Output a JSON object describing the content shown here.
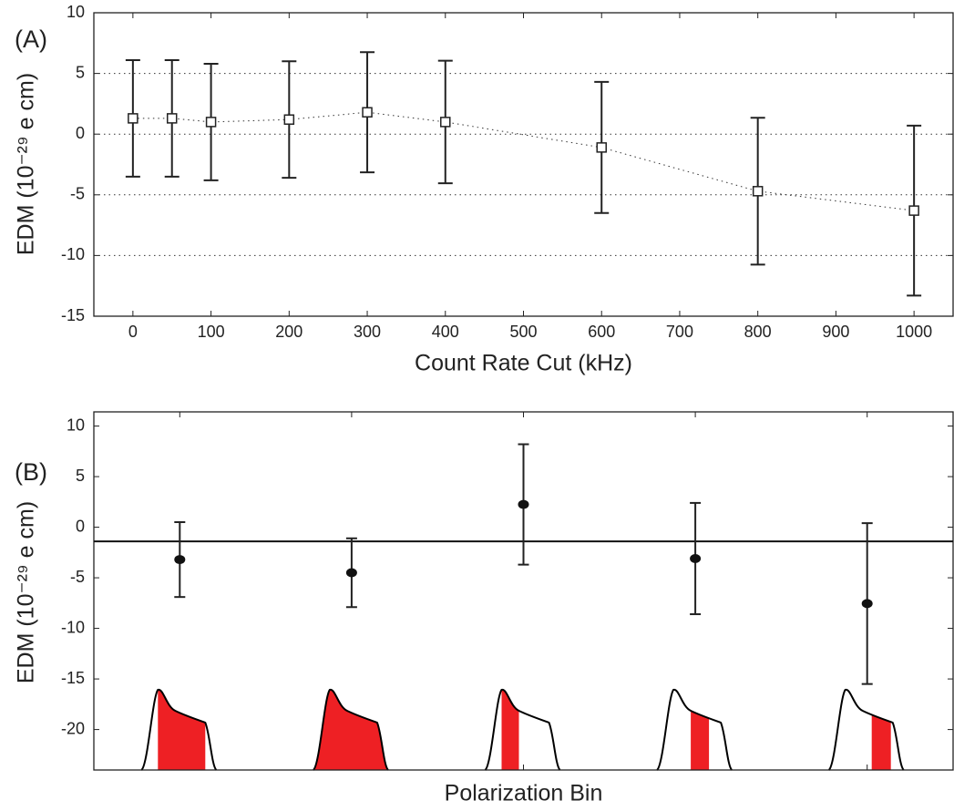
{
  "chart_data": [
    {
      "type": "errorbar",
      "panel_label": "(A)",
      "x_label": "Count Rate Cut (kHz)",
      "y_label": "EDM (10⁻²⁹ e cm)",
      "x": [
        0,
        50,
        100,
        200,
        300,
        400,
        600,
        800,
        1000
      ],
      "values": [
        1.3,
        1.3,
        1.0,
        1.2,
        1.8,
        1.0,
        -1.1,
        -4.7,
        -6.3
      ],
      "errors": [
        4.8,
        4.8,
        4.8,
        4.8,
        4.95,
        5.05,
        5.4,
        6.05,
        7.0
      ],
      "xlim": [
        -50,
        1050
      ],
      "xticks": [
        0,
        100,
        200,
        300,
        400,
        500,
        600,
        700,
        800,
        900,
        1000
      ],
      "ylim": [
        -15,
        10
      ],
      "yticks": [
        -15,
        -10,
        -5,
        0,
        5,
        10
      ],
      "grid": true,
      "marker": "square",
      "line": true,
      "color": "#222222"
    },
    {
      "type": "errorbar",
      "panel_label": "(B)",
      "x_label": "Polarization Bin",
      "y_label": "EDM (10⁻²⁹ e cm)",
      "categories": [
        null,
        null,
        null,
        null,
        null
      ],
      "values": [
        -3.2,
        -4.5,
        2.25,
        -3.1,
        -7.55
      ],
      "errors": [
        3.7,
        3.4,
        5.95,
        5.5,
        7.95
      ],
      "ylim": [
        -24,
        11.4
      ],
      "yticks": [
        -20,
        -15,
        -10,
        -5,
        0,
        5,
        10
      ],
      "reference_line": -1.4,
      "marker": "dot",
      "color": "#222222"
    }
  ]
}
